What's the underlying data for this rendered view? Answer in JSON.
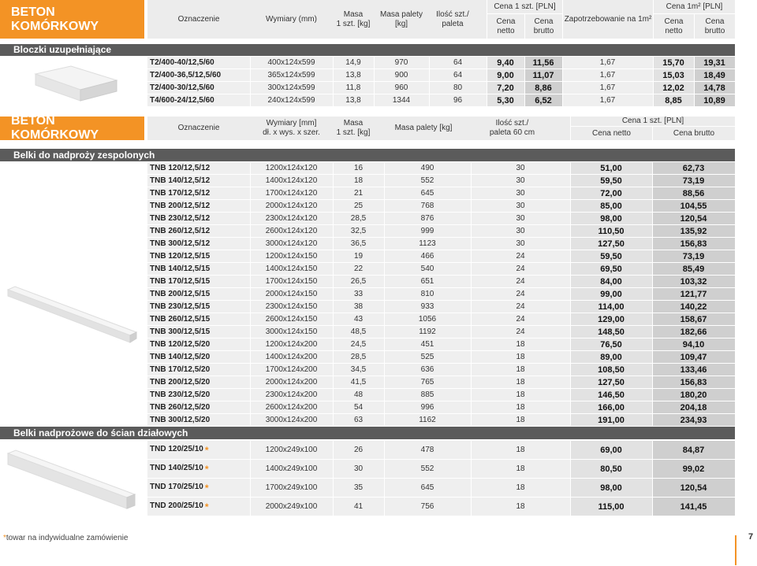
{
  "colors": {
    "orange": "#f39325",
    "dark_bar": "#5b5b5b"
  },
  "header1": {
    "brand": "BETON KOMÓRKOWY",
    "oznaczenie": "Oznaczenie",
    "wymiary": "Wymiary (mm)",
    "masa_line1": "Masa",
    "masa_line2": "1 szt. [kg]",
    "masa_palety_line1": "Masa palety",
    "masa_palety_line2": "[kg]",
    "ilosc_line1": "Ilość szt./",
    "ilosc_line2": "paleta",
    "cena_szt": "Cena 1 szt. [PLN]",
    "zapotrzebowanie": "Zapotrzebowanie na 1m²",
    "cena_m2": "Cena 1m² [PLN]",
    "cena_netto_1": "Cena",
    "cena_netto_2": "netto",
    "cena_brutto_1": "Cena",
    "cena_brutto_2": "brutto"
  },
  "section_bloczki": {
    "title": "Bloczki uzupełniające",
    "rows": [
      [
        "T2/400-40/12,5/60",
        "400x124x599",
        "14,9",
        "970",
        "64",
        "9,40",
        "11,56",
        "1,67",
        "15,70",
        "19,31"
      ],
      [
        "T2/400-36,5/12,5/60",
        "365x124x599",
        "13,8",
        "900",
        "64",
        "9,00",
        "11,07",
        "1,67",
        "15,03",
        "18,49"
      ],
      [
        "T2/400-30/12,5/60",
        "300x124x599",
        "11,8",
        "960",
        "80",
        "7,20",
        "8,86",
        "1,67",
        "12,02",
        "14,78"
      ],
      [
        "T4/600-24/12,5/60",
        "240x124x599",
        "13,8",
        "1344",
        "96",
        "5,30",
        "6,52",
        "1,67",
        "8,85",
        "10,89"
      ]
    ]
  },
  "header2": {
    "brand": "BETON KOMÓRKOWY",
    "oznaczenie": "Oznaczenie",
    "wymiary_line1": "Wymiary [mm]",
    "wymiary_line2": "dł. x wys. x szer.",
    "masa_line1": "Masa",
    "masa_line2": "1 szt. [kg]",
    "masa_palety": "Masa palety [kg]",
    "ilosc_line1": "Ilość szt./",
    "ilosc_line2": "paleta 60 cm",
    "cena_szt": "Cena 1 szt. [PLN]",
    "cena_netto": "Cena netto",
    "cena_brutto": "Cena brutto"
  },
  "section_belki_zesp": {
    "title": "Belki do nadproży zespolonych",
    "rows": [
      [
        "TNB 120/12,5/12",
        "1200x124x120",
        "16",
        "490",
        "30",
        "51,00",
        "62,73"
      ],
      [
        "TNB 140/12,5/12",
        "1400x124x120",
        "18",
        "552",
        "30",
        "59,50",
        "73,19"
      ],
      [
        "TNB 170/12,5/12",
        "1700x124x120",
        "21",
        "645",
        "30",
        "72,00",
        "88,56"
      ],
      [
        "TNB 200/12,5/12",
        "2000x124x120",
        "25",
        "768",
        "30",
        "85,00",
        "104,55"
      ],
      [
        "TNB 230/12,5/12",
        "2300x124x120",
        "28,5",
        "876",
        "30",
        "98,00",
        "120,54"
      ],
      [
        "TNB 260/12,5/12",
        "2600x124x120",
        "32,5",
        "999",
        "30",
        "110,50",
        "135,92"
      ],
      [
        "TNB 300/12,5/12",
        "3000x124x120",
        "36,5",
        "1123",
        "30",
        "127,50",
        "156,83"
      ],
      [
        "TNB 120/12,5/15",
        "1200x124x150",
        "19",
        "466",
        "24",
        "59,50",
        "73,19"
      ],
      [
        "TNB 140/12,5/15",
        "1400x124x150",
        "22",
        "540",
        "24",
        "69,50",
        "85,49"
      ],
      [
        "TNB 170/12,5/15",
        "1700x124x150",
        "26,5",
        "651",
        "24",
        "84,00",
        "103,32"
      ],
      [
        "TNB 200/12,5/15",
        "2000x124x150",
        "33",
        "810",
        "24",
        "99,00",
        "121,77"
      ],
      [
        "TNB 230/12,5/15",
        "2300x124x150",
        "38",
        "933",
        "24",
        "114,00",
        "140,22"
      ],
      [
        "TNB 260/12,5/15",
        "2600x124x150",
        "43",
        "1056",
        "24",
        "129,00",
        "158,67"
      ],
      [
        "TNB 300/12,5/15",
        "3000x124x150",
        "48,5",
        "1192",
        "24",
        "148,50",
        "182,66"
      ],
      [
        "TNB 120/12,5/20",
        "1200x124x200",
        "24,5",
        "451",
        "18",
        "76,50",
        "94,10"
      ],
      [
        "TNB 140/12,5/20",
        "1400x124x200",
        "28,5",
        "525",
        "18",
        "89,00",
        "109,47"
      ],
      [
        "TNB 170/12,5/20",
        "1700x124x200",
        "34,5",
        "636",
        "18",
        "108,50",
        "133,46"
      ],
      [
        "TNB 200/12,5/20",
        "2000x124x200",
        "41,5",
        "765",
        "18",
        "127,50",
        "156,83"
      ],
      [
        "TNB 230/12,5/20",
        "2300x124x200",
        "48",
        "885",
        "18",
        "146,50",
        "180,20"
      ],
      [
        "TNB 260/12,5/20",
        "2600x124x200",
        "54",
        "996",
        "18",
        "166,00",
        "204,18"
      ],
      [
        "TNB 300/12,5/20",
        "3000x124x200",
        "63",
        "1162",
        "18",
        "191,00",
        "234,93"
      ]
    ]
  },
  "section_belki_dzial": {
    "title": "Belki nadprożowe do ścian działowych",
    "star": "*",
    "rows": [
      [
        "TND 120/25/10",
        "1200x249x100",
        "26",
        "478",
        "18",
        "69,00",
        "84,87"
      ],
      [
        "TND 140/25/10",
        "1400x249x100",
        "30",
        "552",
        "18",
        "80,50",
        "99,02"
      ],
      [
        "TND 170/25/10",
        "1700x249x100",
        "35",
        "645",
        "18",
        "98,00",
        "120,54"
      ],
      [
        "TND 200/25/10",
        "2000x249x100",
        "41",
        "756",
        "18",
        "115,00",
        "141,45"
      ]
    ]
  },
  "footer": {
    "star": "*",
    "note": "towar na indywidualne zamówienie",
    "page": "7"
  }
}
